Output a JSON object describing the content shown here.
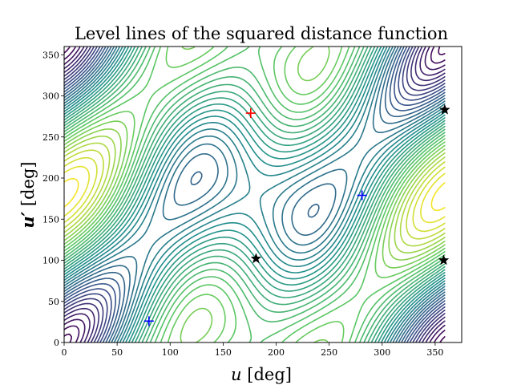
{
  "chart_data": {
    "type": "contour",
    "title": "Level lines of the squared distance function",
    "xlabel_var": "u",
    "xlabel_unit": " [deg]",
    "ylabel_var": "u′",
    "ylabel_unit": " [deg]",
    "xlim": [
      0,
      375
    ],
    "ylim": [
      0,
      360
    ],
    "x_ticks": [
      0,
      50,
      100,
      150,
      200,
      250,
      300,
      350
    ],
    "y_ticks": [
      0,
      50,
      100,
      150,
      200,
      250,
      300,
      350
    ],
    "grid": false,
    "legend": "none",
    "colormap": [
      "#440154",
      "#3b528b",
      "#21918c",
      "#5ec962",
      "#fde725"
    ],
    "domain_max": 359,
    "levels": 36,
    "markers": [
      {
        "kind": "plus",
        "color": "#ff0000",
        "x": 176,
        "y": 279
      },
      {
        "kind": "plus",
        "color": "#0000ff",
        "x": 281,
        "y": 179
      },
      {
        "kind": "plus",
        "color": "#0000ff",
        "x": 80,
        "y": 26
      },
      {
        "kind": "star",
        "color": "#000000",
        "x": 181,
        "y": 102
      },
      {
        "kind": "star",
        "color": "#000000",
        "x": 359,
        "y": 283
      },
      {
        "kind": "star",
        "color": "#000000",
        "x": 358,
        "y": 100
      }
    ]
  }
}
